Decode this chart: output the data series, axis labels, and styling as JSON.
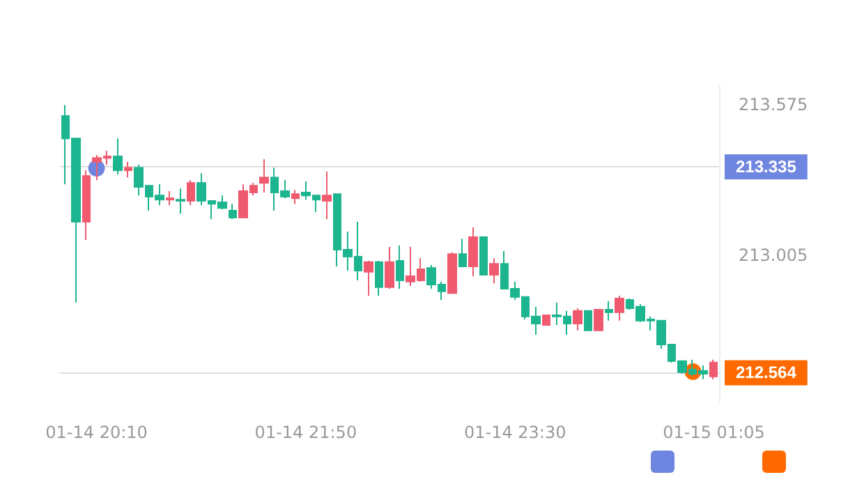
{
  "chart_data": {
    "type": "candlestick",
    "categories": [
      null,
      null,
      null,
      "01-14 20:10",
      null,
      null,
      null,
      null,
      null,
      null,
      null,
      null,
      null,
      null,
      null,
      null,
      null,
      null,
      null,
      null,
      null,
      null,
      null,
      "01-14 21:50",
      null,
      null,
      null,
      null,
      null,
      null,
      null,
      null,
      null,
      null,
      null,
      null,
      null,
      null,
      null,
      null,
      null,
      null,
      null,
      "01-14 23:30",
      null,
      null,
      null,
      null,
      null,
      null,
      null,
      null,
      null,
      null,
      null,
      null,
      null,
      null,
      null,
      null,
      null,
      null,
      "01-15 01:05"
    ],
    "ohlc": [
      [
        213.533,
        213.575,
        213.274,
        213.448
      ],
      [
        213.448,
        213.448,
        212.826,
        213.132
      ],
      [
        213.132,
        213.327,
        213.063,
        213.306
      ],
      [
        213.359,
        213.385,
        213.29,
        213.374
      ],
      [
        213.374,
        213.401,
        213.348,
        213.38
      ],
      [
        213.38,
        213.448,
        213.311,
        213.327
      ],
      [
        213.327,
        213.359,
        213.3,
        213.337
      ],
      [
        213.337,
        213.348,
        213.232,
        213.264
      ],
      [
        213.269,
        213.269,
        213.174,
        213.227
      ],
      [
        213.232,
        213.274,
        213.195,
        213.216
      ],
      [
        213.216,
        213.248,
        213.195,
        213.221
      ],
      [
        213.216,
        213.258,
        213.163,
        213.211
      ],
      [
        213.211,
        213.29,
        213.195,
        213.279
      ],
      [
        213.279,
        213.316,
        213.195,
        213.211
      ],
      [
        213.211,
        213.211,
        213.142,
        213.2
      ],
      [
        213.206,
        213.232,
        213.179,
        213.184
      ],
      [
        213.174,
        213.2,
        213.142,
        213.148
      ],
      [
        213.148,
        213.274,
        213.148,
        213.248
      ],
      [
        213.243,
        213.279,
        213.232,
        213.269
      ],
      [
        213.279,
        213.369,
        213.243,
        213.3
      ],
      [
        213.3,
        213.337,
        213.174,
        213.243
      ],
      [
        213.248,
        213.29,
        213.221,
        213.227
      ],
      [
        213.221,
        213.253,
        213.2,
        213.237
      ],
      [
        213.243,
        213.285,
        213.216,
        213.232
      ],
      [
        213.232,
        213.232,
        213.169,
        213.216
      ],
      [
        213.211,
        213.322,
        213.142,
        213.232
      ],
      [
        213.237,
        213.237,
        212.963,
        213.026
      ],
      [
        213.026,
        213.095,
        212.947,
        213.0
      ],
      [
        213.0,
        213.132,
        212.91,
        212.947
      ],
      [
        212.942,
        212.984,
        212.852,
        212.979
      ],
      [
        212.979,
        212.984,
        212.852,
        212.884
      ],
      [
        212.884,
        213.037,
        212.878,
        212.979
      ],
      [
        212.984,
        213.042,
        212.878,
        212.91
      ],
      [
        212.905,
        213.037,
        212.889,
        212.926
      ],
      [
        212.91,
        212.994,
        212.905,
        212.952
      ],
      [
        212.957,
        212.968,
        212.878,
        212.894
      ],
      [
        212.894,
        212.905,
        212.836,
        212.868
      ],
      [
        212.862,
        213.016,
        212.862,
        213.01
      ],
      [
        213.01,
        213.068,
        212.963,
        212.963
      ],
      [
        212.963,
        213.111,
        212.926,
        213.074
      ],
      [
        213.074,
        213.074,
        212.931,
        212.931
      ],
      [
        212.931,
        212.994,
        212.899,
        212.973
      ],
      [
        212.973,
        213.021,
        212.878,
        212.878
      ],
      [
        212.878,
        212.905,
        212.836,
        212.847
      ],
      [
        212.847,
        212.847,
        212.762,
        212.773
      ],
      [
        212.773,
        212.81,
        212.704,
        212.746
      ],
      [
        212.741,
        212.778,
        212.741,
        212.778
      ],
      [
        212.778,
        212.826,
        212.741,
        212.773
      ],
      [
        212.773,
        212.794,
        212.704,
        212.746
      ],
      [
        212.746,
        212.804,
        212.72,
        212.794
      ],
      [
        212.794,
        212.794,
        212.72,
        212.72
      ],
      [
        212.72,
        212.799,
        212.72,
        212.799
      ],
      [
        212.799,
        212.831,
        212.757,
        212.789
      ],
      [
        212.789,
        212.852,
        212.757,
        212.841
      ],
      [
        212.836,
        212.841,
        212.799,
        212.804
      ],
      [
        212.81,
        212.82,
        212.752,
        212.757
      ],
      [
        212.762,
        212.773,
        212.72,
        212.757
      ],
      [
        212.757,
        212.757,
        212.651,
        212.667
      ],
      [
        212.667,
        212.667,
        212.599,
        212.604
      ],
      [
        212.604,
        212.604,
        212.556,
        212.562
      ],
      [
        212.572,
        212.609,
        212.546,
        212.556
      ],
      [
        212.567,
        212.588,
        212.535,
        212.556
      ],
      [
        212.546,
        212.609,
        212.535,
        212.599
      ]
    ],
    "colors": [
      "#1db58f",
      "#1db58f",
      "#ef5a6f",
      "#ef5a6f",
      "#ef5a6f",
      "#1db58f",
      "#ef5a6f",
      "#1db58f",
      "#1db58f",
      "#1db58f",
      "#ef5a6f",
      "#1db58f",
      "#ef5a6f",
      "#1db58f",
      "#1db58f",
      "#1db58f",
      "#1db58f",
      "#ef5a6f",
      "#ef5a6f",
      "#ef5a6f",
      "#1db58f",
      "#1db58f",
      "#ef5a6f",
      "#1db58f",
      "#1db58f",
      "#ef5a6f",
      "#1db58f",
      "#1db58f",
      "#1db58f",
      "#ef5a6f",
      "#1db58f",
      "#ef5a6f",
      "#1db58f",
      "#ef5a6f",
      "#ef5a6f",
      "#1db58f",
      "#1db58f",
      "#ef5a6f",
      "#1db58f",
      "#ef5a6f",
      "#1db58f",
      "#ef5a6f",
      "#1db58f",
      "#1db58f",
      "#1db58f",
      "#1db58f",
      "#ef5a6f",
      "#1db58f",
      "#1db58f",
      "#ef5a6f",
      "#1db58f",
      "#ef5a6f",
      "#1db58f",
      "#ef5a6f",
      "#1db58f",
      "#1db58f",
      "#1db58f",
      "#1db58f",
      "#1db58f",
      "#1db58f",
      "#1db58f",
      "#1db58f",
      "#ef5a6f"
    ],
    "series": [
      {
        "type": "scatter",
        "color": "#6f86e0",
        "values": [
          null,
          null,
          null,
          213.335,
          null,
          null,
          null,
          null,
          null,
          null,
          null,
          null,
          null,
          null,
          null,
          null,
          null,
          null,
          null,
          null,
          null,
          null,
          null,
          null,
          null,
          null,
          null,
          null,
          null,
          null,
          null,
          null,
          null,
          null,
          null,
          null,
          null,
          null,
          null,
          null,
          null,
          null,
          null,
          null,
          null,
          null,
          null,
          null,
          null,
          null,
          null,
          null,
          null,
          null,
          null,
          null,
          null,
          null,
          null,
          null,
          null,
          null,
          null
        ]
      },
      {
        "type": "scatter",
        "color": "#ff6a00",
        "values": [
          null,
          null,
          null,
          null,
          null,
          null,
          null,
          null,
          null,
          null,
          null,
          null,
          null,
          null,
          null,
          null,
          null,
          null,
          null,
          null,
          null,
          null,
          null,
          null,
          null,
          null,
          null,
          null,
          null,
          null,
          null,
          null,
          null,
          null,
          null,
          null,
          null,
          null,
          null,
          null,
          null,
          null,
          null,
          null,
          null,
          null,
          null,
          null,
          null,
          null,
          null,
          null,
          null,
          null,
          null,
          null,
          null,
          null,
          null,
          null,
          212.564,
          null,
          null
        ]
      }
    ],
    "ref_lines": [
      {
        "axis": "y",
        "value": 213.335,
        "label": "213.335",
        "color": "#dddddd"
      },
      {
        "axis": "y",
        "value": 212.564,
        "label": "212.564",
        "color": "#dddddd"
      }
    ],
    "ylim": [
      212.45,
      213.65
    ],
    "yticks": [
      213.575,
      213.005
    ],
    "grid": false,
    "legend": "bottom right",
    "marker": "circle"
  }
}
